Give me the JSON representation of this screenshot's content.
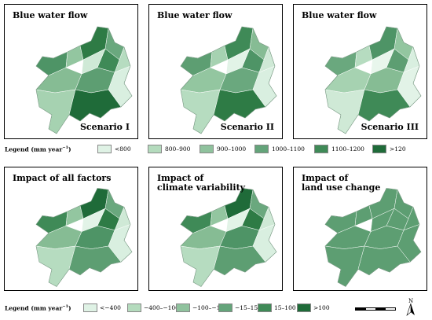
{
  "panels_top": [
    {
      "title": "Blue water flow",
      "scenario": "Scenario I",
      "fills": [
        "#4e9466",
        "#93c6a0",
        "#2e7b45",
        "#6aa87e",
        "#b6dcc0",
        "#3f8a57",
        "#cfe9d6",
        "#86bc94",
        "#5d9e72",
        "#d9efe0",
        "#a6d2b1",
        "#1f6b39"
      ]
    },
    {
      "title": "Blue water flow",
      "scenario": "Scenario  II",
      "fills": [
        "#5d9e72",
        "#a6d2b1",
        "#3f8a57",
        "#86bc94",
        "#cfe9d6",
        "#4e9466",
        "#e2f3e7",
        "#93c6a0",
        "#6aa87e",
        "#d9efe0",
        "#b6dcc0",
        "#2e7b45"
      ]
    },
    {
      "title": "Blue water flow",
      "scenario": "Scenario  III",
      "fills": [
        "#6aa87e",
        "#b6dcc0",
        "#4e9466",
        "#93c6a0",
        "#d9efe0",
        "#5d9e72",
        "#e8f6ec",
        "#a6d2b1",
        "#86bc94",
        "#e2f3e7",
        "#cfe9d6",
        "#3f8a57"
      ]
    }
  ],
  "legend_top": {
    "title": "Legend (mm year",
    "title_sup": "−1",
    "title_end": ")",
    "items": [
      {
        "label": "<800",
        "color": "#dff2e5"
      },
      {
        "label": "800–900",
        "color": "#b4dbbd"
      },
      {
        "label": "900–1000",
        "color": "#8fc29d"
      },
      {
        "label": "1000–1100",
        "color": "#64a47a"
      },
      {
        "label": "1100–1200",
        "color": "#3f8a57"
      },
      {
        "label": ">120",
        "color": "#1f6b39"
      }
    ]
  },
  "panels_bottom": [
    {
      "title": "Impact of all factors",
      "fills": [
        "#3f8a57",
        "#93c6a0",
        "#1f6b39",
        "#6aa87e",
        "#cfe9d6",
        "#2e7b45",
        "#e2f3e7",
        "#86bc94",
        "#4e9466",
        "#d9efe0",
        "#b6dcc0",
        "#5d9e72"
      ]
    },
    {
      "title": "Impact of\nclimate variability",
      "fills": [
        "#3f8a57",
        "#93c6a0",
        "#1f6b39",
        "#6aa87e",
        "#cfe9d6",
        "#2e7b45",
        "#e2f3e7",
        "#86bc94",
        "#4e9466",
        "#d9efe0",
        "#b6dcc0",
        "#5d9e72"
      ]
    },
    {
      "title": "Impact of\nland use change",
      "fills": [
        "#5d9e72",
        "#5d9e72",
        "#5d9e72",
        "#5d9e72",
        "#5d9e72",
        "#5d9e72",
        "#5d9e72",
        "#5d9e72",
        "#5d9e72",
        "#5d9e72",
        "#5d9e72",
        "#5d9e72"
      ]
    }
  ],
  "legend_bottom": {
    "title": "Legend (mm year",
    "title_sup": "−1",
    "title_end": ")",
    "items": [
      {
        "label": "<−400",
        "color": "#dff2e5"
      },
      {
        "label": "−400–−100",
        "color": "#b4dbbd"
      },
      {
        "label": "−100–−15",
        "color": "#8fc29d"
      },
      {
        "label": "−15–15",
        "color": "#64a47a"
      },
      {
        "label": "15–100",
        "color": "#3f8a57"
      },
      {
        "label": ">100",
        "color": "#1f6b39"
      }
    ]
  },
  "north_label": "N"
}
